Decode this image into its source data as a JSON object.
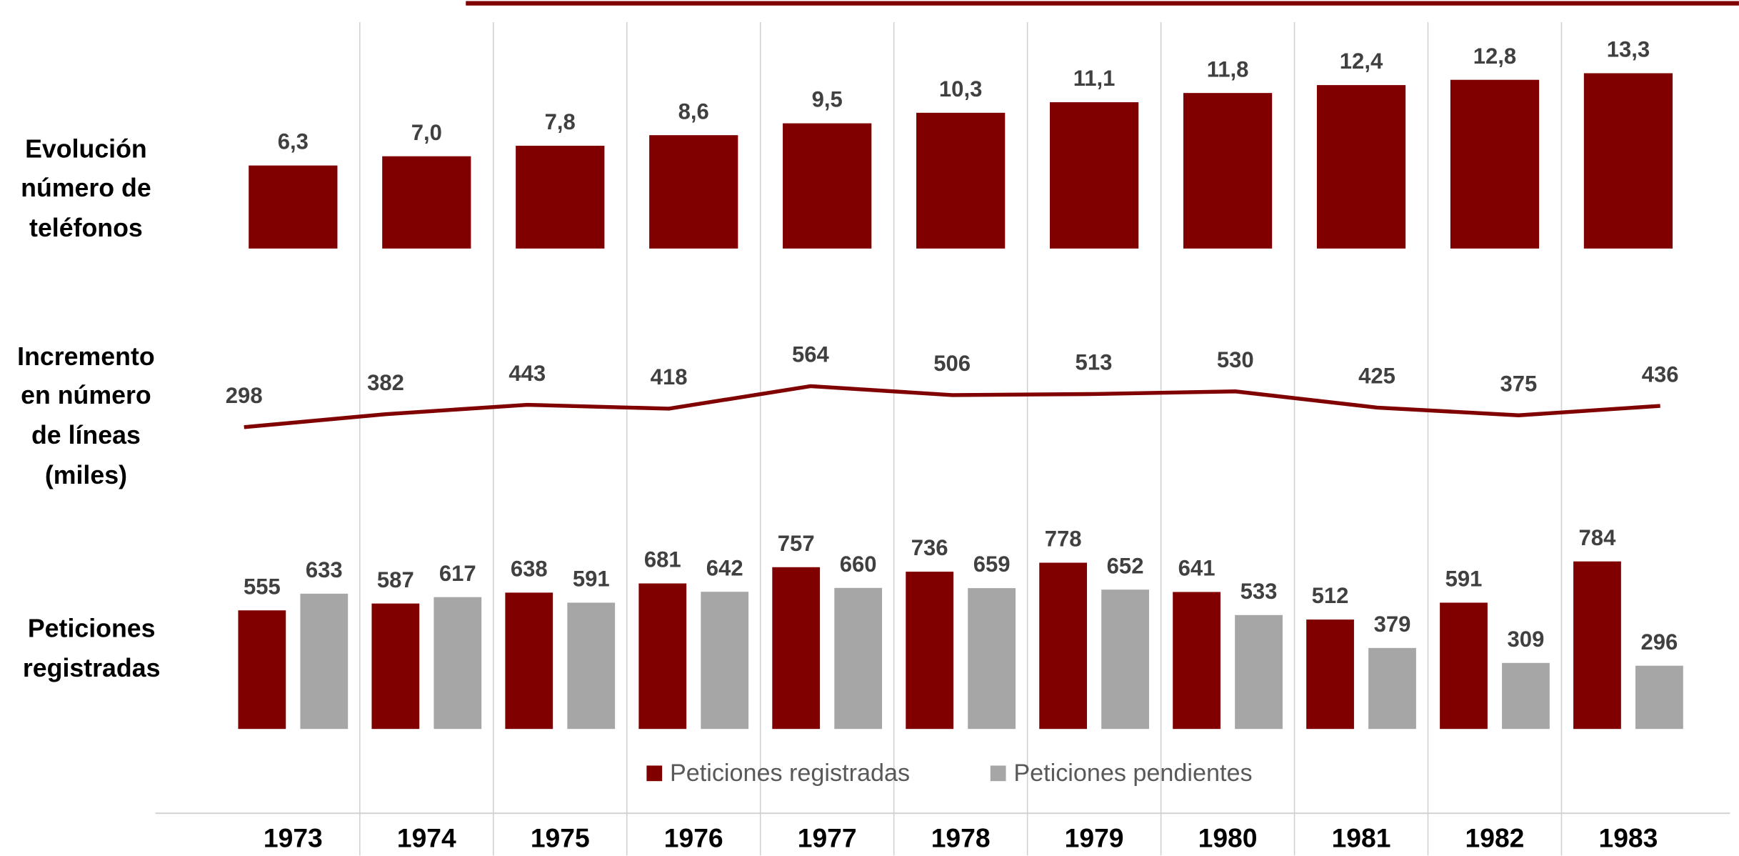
{
  "chart_data": [
    {
      "type": "bar",
      "title": "Evolución\nnúmero de\nteléfonos",
      "values": [
        6.3,
        7.0,
        7.8,
        8.6,
        9.5,
        10.3,
        11.1,
        11.8,
        12.4,
        12.8,
        13.3
      ],
      "value_labels": [
        "6,3",
        "7,0",
        "7,8",
        "8,6",
        "9,5",
        "10,3",
        "11,1",
        "11,8",
        "12,4",
        "12,8",
        "13,3"
      ],
      "color": "#800000"
    },
    {
      "type": "line",
      "title": "Incremento\nen número\nde líneas\n(miles)",
      "values": [
        298,
        382,
        443,
        418,
        564,
        506,
        513,
        530,
        425,
        375,
        436
      ],
      "color": "#800000"
    },
    {
      "type": "bar",
      "title": "Peticiones\nregistradas",
      "categories": [
        "1973",
        "1974",
        "1975",
        "1976",
        "1977",
        "1978",
        "1979",
        "1980",
        "1981",
        "1982",
        "1983"
      ],
      "series": [
        {
          "name": "Peticiones registradas",
          "color": "#800000",
          "values": [
            555,
            587,
            638,
            681,
            757,
            736,
            778,
            641,
            512,
            591,
            784
          ]
        },
        {
          "name": "Peticiones pendientes",
          "color": "#a6a6a6",
          "values": [
            633,
            617,
            591,
            642,
            660,
            659,
            652,
            533,
            379,
            309,
            296
          ]
        }
      ],
      "legend": "bottom"
    }
  ]
}
